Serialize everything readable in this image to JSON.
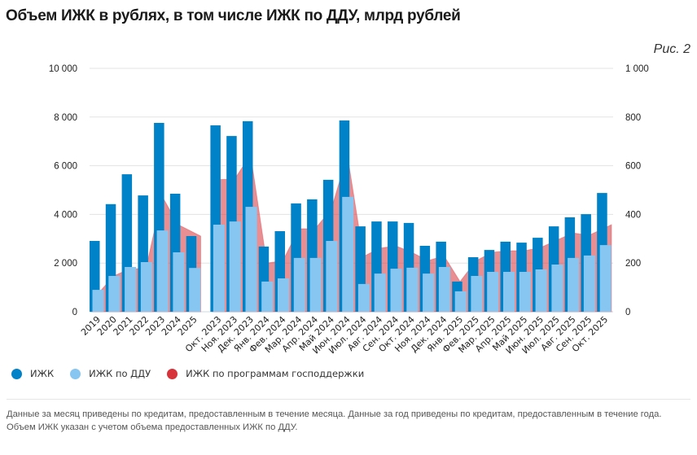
{
  "title": "Объем ИЖК в рублях, в том числе ИЖК по ДДУ, млрд рублей",
  "figure_label": "Рис. 2",
  "legend": [
    {
      "label": "ИЖК",
      "color": "#0082C8"
    },
    {
      "label": "ИЖК по ДДУ",
      "color": "#87C6F0"
    },
    {
      "label": "ИЖК по программам господдержки",
      "color": "#D6333B"
    }
  ],
  "note": "Данные за месяц приведены по кредитам, предоставленным в течение месяца. Данные за год приведены по кредитам, предоставленным в течение года. Объем ИЖК указан с учетом объема предоставленных ИЖК по ДДУ.",
  "chart_data": {
    "type": "bar",
    "title": "Объем ИЖК в рублях, в том числе ИЖК по ДДУ, млрд рублей",
    "xlabel": "",
    "ylabel": "",
    "grid": true,
    "legend_position": "bottom-left",
    "left_axis": {
      "ylim": [
        0,
        10000
      ],
      "ticks": [
        "0",
        "2 000",
        "4 000",
        "6 000",
        "8 000",
        "10 000"
      ]
    },
    "right_axis": {
      "ylim": [
        0,
        1000
      ],
      "ticks": [
        "0",
        "200",
        "400",
        "600",
        "800",
        "1 000"
      ]
    },
    "categories": [
      "2019",
      "2020",
      "2021",
      "2022",
      "2023",
      "2024",
      "2025",
      "Окт. 2023",
      "Ноя. 2023",
      "Дек. 2023",
      "Янв. 2024",
      "Фев. 2024",
      "Мар. 2024",
      "Апр. 2024",
      "Май 2024",
      "Июн. 2024",
      "Июл. 2024",
      "Авг. 2024",
      "Сен. 2024",
      "Окт. 2024",
      "Ноя. 2024",
      "Дек. 2024",
      "Янв. 2025",
      "Фев. 2025",
      "Мар. 2025",
      "Апр. 2025",
      "Май 2025",
      "Июн. 2025",
      "Июл. 2025",
      "Авг. 2025",
      "Сен. 2025",
      "Окт. 2025"
    ],
    "group_break_after_index": 6,
    "series": [
      {
        "name": "ИЖК",
        "type": "bar",
        "axis": "left",
        "color": "#0082C8",
        "values": [
          2910,
          4420,
          5650,
          4780,
          7760,
          4850,
          3110,
          7660,
          7220,
          7830,
          2680,
          3310,
          4450,
          4620,
          5420,
          7860,
          3510,
          3710,
          3710,
          3650,
          2710,
          2880,
          1240,
          2240,
          2540,
          2880,
          2840,
          3040,
          3510,
          3880,
          4010,
          4880
        ]
      },
      {
        "name": "ИЖК по ДДУ",
        "type": "bar",
        "axis": "left",
        "color": "#87C6F0",
        "values": [
          900,
          1470,
          1840,
          2040,
          3340,
          2440,
          1800,
          3580,
          3710,
          4310,
          1240,
          1370,
          2210,
          2210,
          2910,
          4720,
          1140,
          1570,
          1770,
          1810,
          1570,
          1840,
          840,
          1470,
          1640,
          1640,
          1640,
          1740,
          1940,
          2210,
          2310,
          2740
        ]
      },
      {
        "name": "ИЖК по программам господдержки",
        "type": "area",
        "axis": "right",
        "color": "#D6333B",
        "values": [
          43,
          147,
          177,
          177,
          475,
          358,
          311,
          542,
          545,
          645,
          200,
          210,
          341,
          341,
          420,
          645,
          227,
          261,
          271,
          244,
          210,
          230,
          124,
          210,
          244,
          251,
          251,
          264,
          294,
          324,
          314,
          358
        ]
      }
    ]
  }
}
